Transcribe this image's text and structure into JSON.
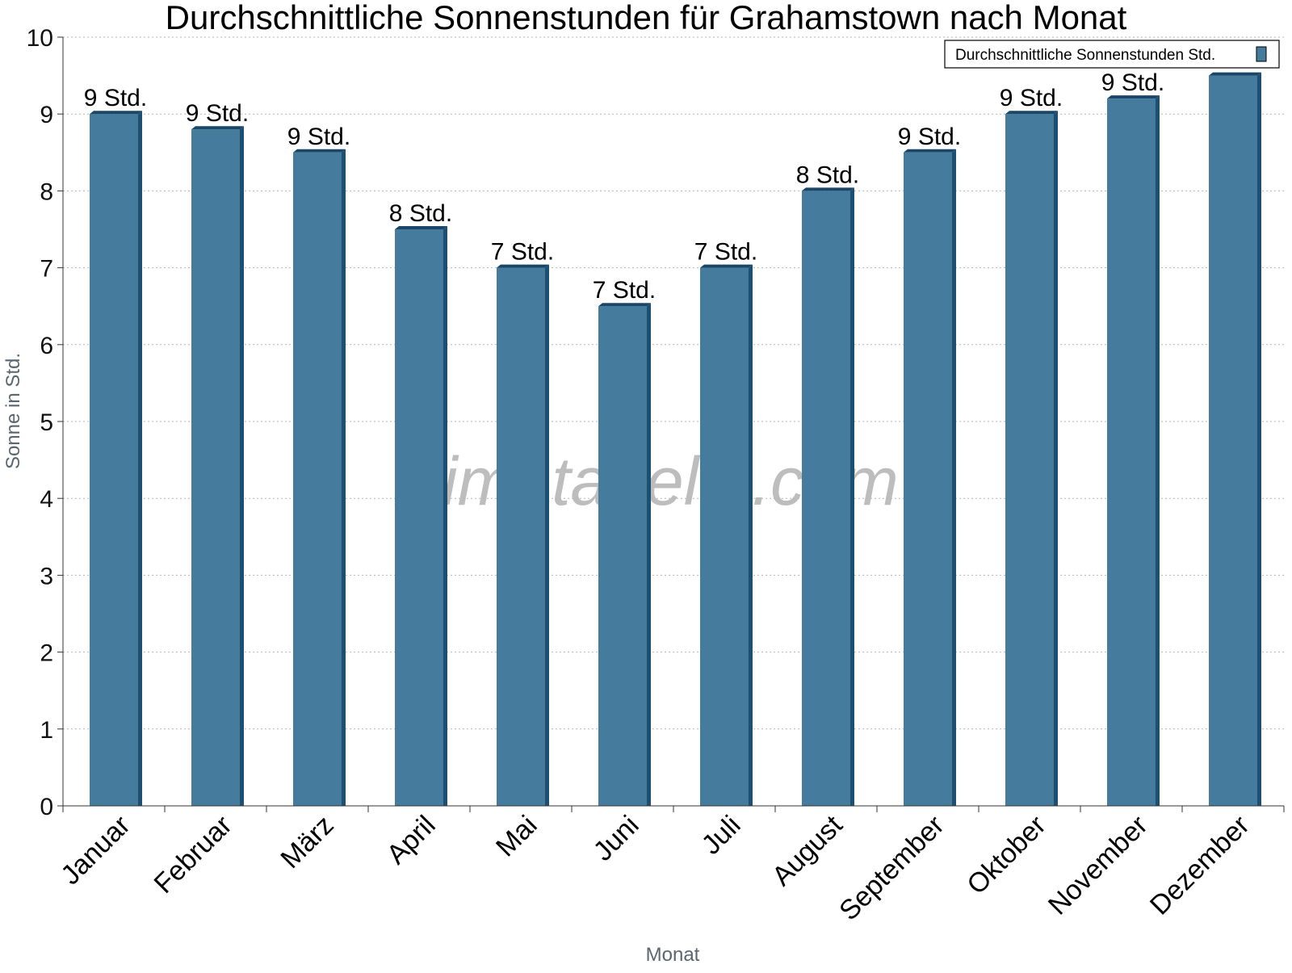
{
  "chart_data": {
    "type": "bar",
    "title": "Durchschnittliche Sonnenstunden für Grahamstown nach Monat",
    "xlabel": "Monat",
    "ylabel": "Sonne in Std.",
    "ylim": [
      0,
      10
    ],
    "yticks": [
      "0",
      "1",
      "2",
      "3",
      "4",
      "5",
      "6",
      "7",
      "8",
      "9",
      "10"
    ],
    "grid": true,
    "legend_position": "top-right",
    "categories": [
      "Januar",
      "Februar",
      "März",
      "April",
      "Mai",
      "Juni",
      "Juli",
      "August",
      "September",
      "Oktober",
      "November",
      "Dezember"
    ],
    "series": [
      {
        "name": "Durchschnittliche Sonnenstunden Std.",
        "color": "#457b9d",
        "values": [
          9.0,
          8.8,
          8.5,
          7.5,
          7.0,
          6.5,
          7.0,
          8.0,
          8.5,
          9.0,
          9.2,
          9.5
        ],
        "labels": [
          "9 Std.",
          "9 Std.",
          "9 Std.",
          "8 Std.",
          "7 Std.",
          "7 Std.",
          "7 Std.",
          "8 Std.",
          "9 Std.",
          "9 Std.",
          "9 Std.",
          ""
        ]
      }
    ]
  },
  "watermark": "klimatabelle.com"
}
